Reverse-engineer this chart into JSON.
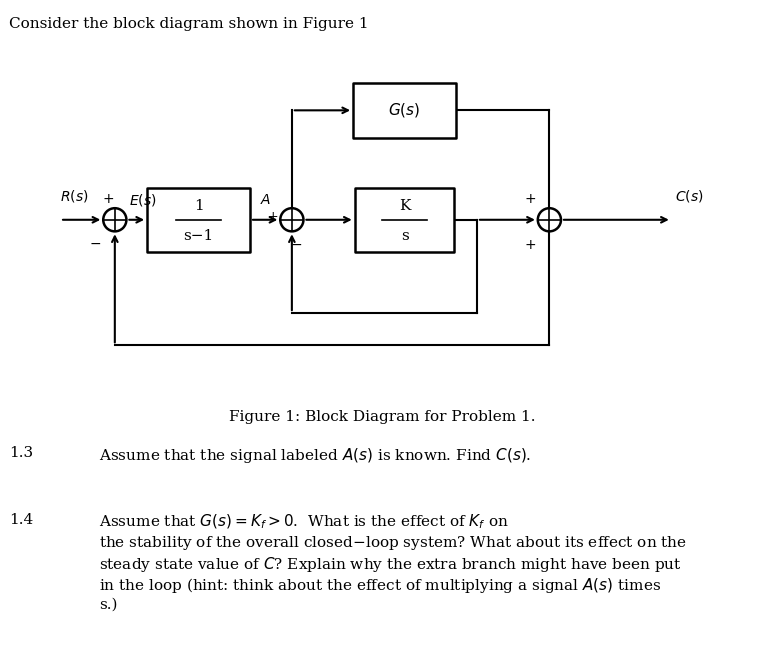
{
  "title_text": "Consider the block diagram shown in Figure 1",
  "figure_caption": "Figure 1: Block Diagram for Problem 1.",
  "section_13_label": "1.3",
  "section_13_text": "Assume that the signal labeled $A(s)$ is known. Find $C(s)$.",
  "section_14_label": "1.4",
  "section_14_text": "Assume that $G(s) = K_f > 0$.  What is the effect of $K_f$ on\nthe stability of the overall closed–loop system? What about its effect on the\nsteady state value of $C$? Explain why the extra branch might have been put\nin the loop (hint: think about the effect of multiplying a signal $A(s)$ times\ns.)",
  "bg_color": "#ffffff",
  "line_color": "#000000",
  "text_color": "#000000",
  "block_lw": 1.8,
  "arrow_lw": 1.5
}
